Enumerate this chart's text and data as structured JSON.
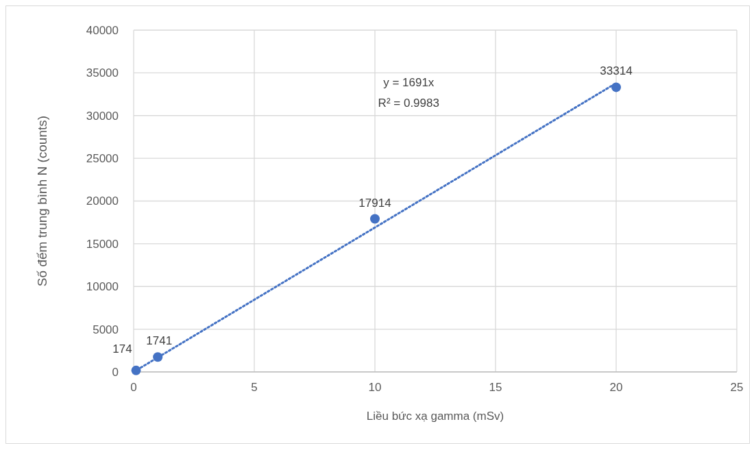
{
  "chart_data": {
    "type": "scatter",
    "xlabel": "Liều bức xạ gamma (mSv)",
    "ylabel": "Số đếm trung bình N (counts)",
    "xlim": [
      0,
      25
    ],
    "xticks": [
      0,
      5,
      10,
      15,
      20,
      25
    ],
    "ylim": [
      0,
      40000
    ],
    "yticks": [
      0,
      5000,
      10000,
      15000,
      20000,
      25000,
      30000,
      35000,
      40000
    ],
    "grid": true,
    "series": [
      {
        "color": "#4472c4",
        "x": [
          0.1,
          1,
          10,
          20
        ],
        "values": [
          174,
          1741,
          17914,
          33314
        ],
        "marker": "circle",
        "data_labels": true
      },
      {
        "type": "line",
        "color": "#4472c4",
        "x": [
          0,
          20
        ],
        "values": [
          0,
          33800
        ],
        "line_style": "dotted"
      }
    ],
    "annotations": [
      "y = 1691x",
      "R² = 0.9983"
    ]
  }
}
